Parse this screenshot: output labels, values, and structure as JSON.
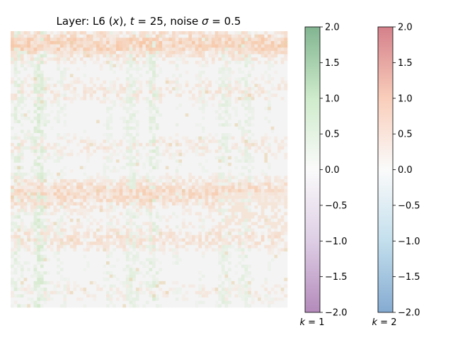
{
  "chart_data": {
    "type": "heatmap",
    "title": "Layer: L6 (x), t = 25, noise σ = 0.5",
    "title_parts": {
      "prefix": "Layer: L6 (",
      "var": "x",
      "mid1": "), ",
      "t_sym": "t",
      "t_eq": " = 25, noise ",
      "sigma_sym": "σ",
      "sigma_eq": " = 0.5"
    },
    "heatmap": {
      "grid_rows": 84,
      "grid_cols": 84,
      "value_range": [
        -2.0,
        2.0
      ],
      "overlay_alpha": 0.5
    },
    "colorbars": [
      {
        "name": "k = 1",
        "label_sym": "k",
        "label_eq": " = 1",
        "colormap": "PRGn",
        "range": [
          -2.0,
          2.0
        ],
        "ticks": [
          2.0,
          1.5,
          1.0,
          0.5,
          0.0,
          -0.5,
          -1.0,
          -1.5,
          -2.0
        ],
        "tick_labels": [
          "2.0",
          "1.5",
          "1.0",
          "0.5",
          "0.0",
          "−0.5",
          "−1.0",
          "−1.5",
          "−2.0"
        ]
      },
      {
        "name": "k = 2",
        "label_sym": "k",
        "label_eq": " = 2",
        "colormap": "RdBu_r",
        "range": [
          -2.0,
          2.0
        ],
        "ticks": [
          2.0,
          1.5,
          1.0,
          0.5,
          0.0,
          -0.5,
          -1.0,
          -1.5,
          -2.0
        ],
        "tick_labels": [
          "2.0",
          "1.5",
          "1.0",
          "0.5",
          "0.0",
          "−0.5",
          "−1.0",
          "−1.5",
          "−2.0"
        ]
      }
    ],
    "colors": {
      "k1_high": "#1b7837",
      "k1_mid": "#f7f7f7",
      "k1_low": "#762a83",
      "k2_high": "#b2182b",
      "k2_mid": "#f7f7f7",
      "k2_low": "#2166ac"
    }
  }
}
